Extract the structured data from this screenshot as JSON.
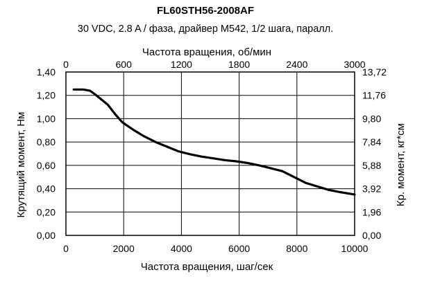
{
  "chart_data": {
    "type": "line",
    "title": "FL60STH56-2008AF",
    "subtitle": "30 VDC, 2.8 A / фаза, драйвер М542, 1/2 шага, паралл.",
    "xlabel": "Частота вращения, шаг/сек",
    "x2label": "Частота вращения, об/мин",
    "ylabel": "Крутящий момент, Нм",
    "y2label": "Кр. момент, кг*см",
    "xlim": [
      0,
      10000
    ],
    "ylim": [
      0,
      1.4
    ],
    "x2lim": [
      0,
      3000
    ],
    "y2lim": [
      0,
      13.72
    ],
    "grid": true,
    "legend": "none",
    "x_ticks": [
      "0",
      "2000",
      "4000",
      "6000",
      "8000",
      "10000"
    ],
    "x2_ticks": [
      "0",
      "600",
      "1200",
      "1800",
      "2400",
      "3000"
    ],
    "y_ticks": [
      "0,00",
      "0,20",
      "0,40",
      "0,60",
      "0,80",
      "1,00",
      "1,20",
      "1,40"
    ],
    "y2_ticks": [
      "0,00",
      "1,96",
      "3,92",
      "5,88",
      "7,84",
      "9,80",
      "11,76",
      "13,72"
    ],
    "series": [
      {
        "color": "#000000",
        "x": [
          270,
          600,
          830,
          1000,
          1200,
          1450,
          1700,
          1950,
          2300,
          2700,
          3100,
          3500,
          3900,
          4300,
          4700,
          5100,
          5500,
          5900,
          6300,
          6700,
          7100,
          7500,
          7900,
          8300,
          8700,
          9100,
          9500,
          10000
        ],
        "y": [
          1.25,
          1.25,
          1.24,
          1.21,
          1.17,
          1.12,
          1.04,
          0.97,
          0.91,
          0.85,
          0.8,
          0.76,
          0.72,
          0.695,
          0.675,
          0.66,
          0.645,
          0.635,
          0.62,
          0.6,
          0.575,
          0.55,
          0.5,
          0.45,
          0.42,
          0.39,
          0.37,
          0.35
        ]
      }
    ]
  }
}
